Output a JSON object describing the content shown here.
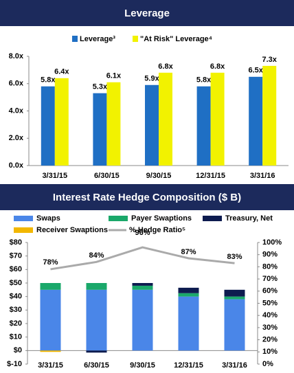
{
  "chart_data": [
    {
      "type": "bar",
      "title": "Leverage",
      "categories": [
        "3/31/15",
        "6/30/15",
        "9/30/15",
        "12/31/15",
        "3/31/16"
      ],
      "series": [
        {
          "name": "Leverage³",
          "color": "#1f6fc4",
          "values": [
            5.8,
            5.3,
            5.9,
            5.8,
            6.5
          ],
          "value_labels": [
            "5.8x",
            "5.3x",
            "5.9x",
            "5.8x",
            "6.5x"
          ]
        },
        {
          "name": "\"At Risk\" Leverage⁴",
          "color": "#f2f200",
          "values": [
            6.4,
            6.1,
            6.8,
            6.8,
            7.3
          ],
          "value_labels": [
            "6.4x",
            "6.1x",
            "6.8x",
            "6.8x",
            "7.3x"
          ]
        }
      ],
      "ylim": [
        0,
        8
      ],
      "yticks": [
        {
          "value": 0,
          "label": "0.0x"
        },
        {
          "value": 2,
          "label": "2.0x"
        },
        {
          "value": 4,
          "label": "4.0x"
        },
        {
          "value": 6,
          "label": "6.0x"
        },
        {
          "value": 8,
          "label": "8.0x"
        }
      ]
    },
    {
      "type": "stacked_bar",
      "title": "Interest Rate Hedge Composition ($ B)",
      "categories": [
        "3/31/15",
        "6/30/15",
        "9/30/15",
        "12/31/15",
        "3/31/16"
      ],
      "series": [
        {
          "name": "Swaps",
          "color": "#4a86e8",
          "values": [
            45,
            45,
            45,
            40,
            38
          ]
        },
        {
          "name": "Payer Swaptions",
          "color": "#1aa86a",
          "values": [
            5,
            5,
            3,
            2.5,
            2
          ]
        },
        {
          "name": "Treasury, Net",
          "color": "#0d1b4f",
          "values": [
            0,
            -1.5,
            2,
            4,
            5
          ]
        },
        {
          "name": "Receiver Swaptions",
          "color": "#f2b700",
          "values": [
            -1,
            0,
            0,
            0,
            0
          ]
        },
        {
          "name": "% Hedge Ratio⁵",
          "color": "#aaaaaa",
          "axis": "y2",
          "values": [
            78,
            84,
            96,
            87,
            83
          ],
          "value_labels": [
            "78%",
            "84%",
            "96%",
            "87%",
            "83%"
          ]
        }
      ],
      "ylim": [
        -10,
        80
      ],
      "yticks": [
        {
          "value": -10,
          "label": "$-10"
        },
        {
          "value": 0,
          "label": "$0"
        },
        {
          "value": 10,
          "label": "$10"
        },
        {
          "value": 20,
          "label": "$20"
        },
        {
          "value": 30,
          "label": "$30"
        },
        {
          "value": 40,
          "label": "$40"
        },
        {
          "value": 50,
          "label": "$50"
        },
        {
          "value": 60,
          "label": "$60"
        },
        {
          "value": 70,
          "label": "$70"
        },
        {
          "value": 80,
          "label": "$80"
        }
      ],
      "y2lim": [
        0,
        100
      ],
      "y2ticks": [
        {
          "value": 0,
          "label": "0%"
        },
        {
          "value": 10,
          "label": "10%"
        },
        {
          "value": 20,
          "label": "20%"
        },
        {
          "value": 30,
          "label": "30%"
        },
        {
          "value": 40,
          "label": "40%"
        },
        {
          "value": 50,
          "label": "50%"
        },
        {
          "value": 60,
          "label": "60%"
        },
        {
          "value": 70,
          "label": "70%"
        },
        {
          "value": 80,
          "label": "80%"
        },
        {
          "value": 90,
          "label": "90%"
        },
        {
          "value": 100,
          "label": "100%"
        }
      ]
    }
  ]
}
